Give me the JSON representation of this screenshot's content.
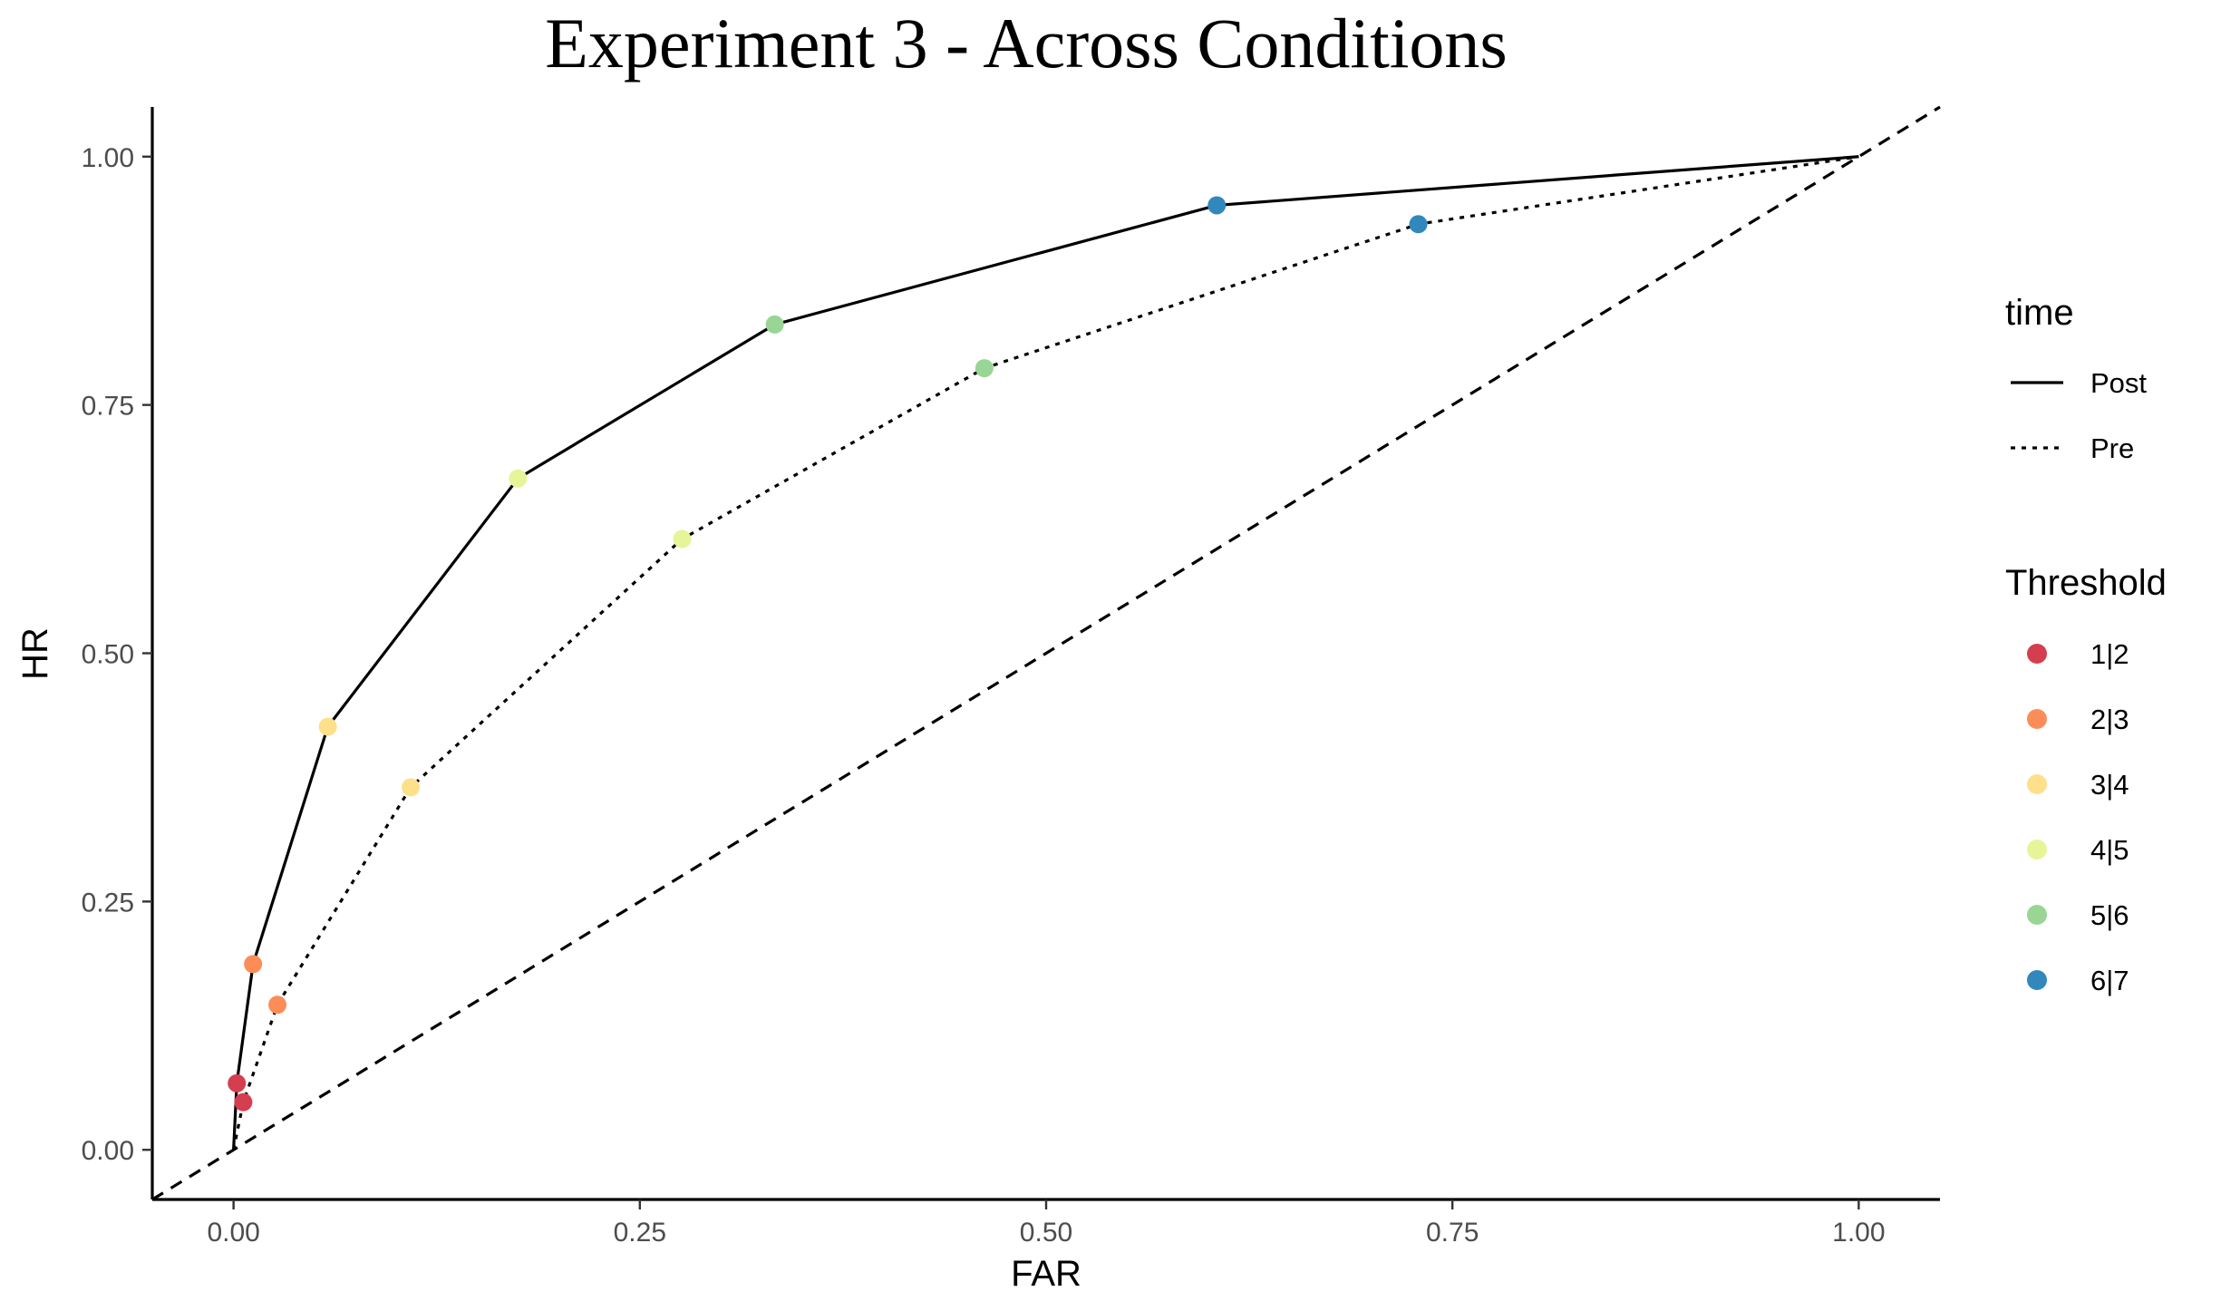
{
  "chart_data": {
    "type": "line",
    "title": "Experiment 3 - Across Conditions",
    "xlabel": "FAR",
    "ylabel": "HR",
    "xlim": [
      -0.05,
      1.05
    ],
    "ylim": [
      -0.05,
      1.05
    ],
    "xticks": [
      "0.00",
      "0.25",
      "0.50",
      "0.75",
      "1.00"
    ],
    "yticks": [
      "0.00",
      "0.25",
      "0.50",
      "0.75",
      "1.00"
    ],
    "grid": false,
    "legend_position": "right",
    "chance_line": {
      "style": "dashed",
      "x": [
        -0.05,
        1.05
      ],
      "y": [
        -0.05,
        1.05
      ]
    },
    "series": [
      {
        "name": "Post",
        "linestyle": "solid",
        "points": [
          {
            "x": 0.0,
            "y": 0.0
          },
          {
            "x": 0.002,
            "y": 0.067,
            "threshold": "1|2"
          },
          {
            "x": 0.012,
            "y": 0.187,
            "threshold": "2|3"
          },
          {
            "x": 0.058,
            "y": 0.426,
            "threshold": "3|4"
          },
          {
            "x": 0.175,
            "y": 0.676,
            "threshold": "4|5"
          },
          {
            "x": 0.333,
            "y": 0.831,
            "threshold": "5|6"
          },
          {
            "x": 0.605,
            "y": 0.951,
            "threshold": "6|7"
          },
          {
            "x": 1.0,
            "y": 1.0
          }
        ]
      },
      {
        "name": "Pre",
        "linestyle": "dotted",
        "points": [
          {
            "x": 0.0,
            "y": 0.0
          },
          {
            "x": 0.006,
            "y": 0.048,
            "threshold": "1|2"
          },
          {
            "x": 0.027,
            "y": 0.146,
            "threshold": "2|3"
          },
          {
            "x": 0.109,
            "y": 0.365,
            "threshold": "3|4"
          },
          {
            "x": 0.276,
            "y": 0.615,
            "threshold": "4|5"
          },
          {
            "x": 0.462,
            "y": 0.787,
            "threshold": "5|6"
          },
          {
            "x": 0.729,
            "y": 0.932,
            "threshold": "6|7"
          },
          {
            "x": 1.0,
            "y": 1.0
          }
        ]
      }
    ],
    "legend_time": {
      "title": "time",
      "items": [
        {
          "label": "Post",
          "linestyle": "solid"
        },
        {
          "label": "Pre",
          "linestyle": "dotted"
        }
      ]
    },
    "legend_threshold": {
      "title": "Threshold",
      "items": [
        {
          "label": "1|2",
          "color": "#d53e4f"
        },
        {
          "label": "2|3",
          "color": "#fc8d59"
        },
        {
          "label": "3|4",
          "color": "#fee08b"
        },
        {
          "label": "4|5",
          "color": "#e6f598"
        },
        {
          "label": "5|6",
          "color": "#99d594"
        },
        {
          "label": "6|7",
          "color": "#3288bd"
        }
      ]
    }
  }
}
